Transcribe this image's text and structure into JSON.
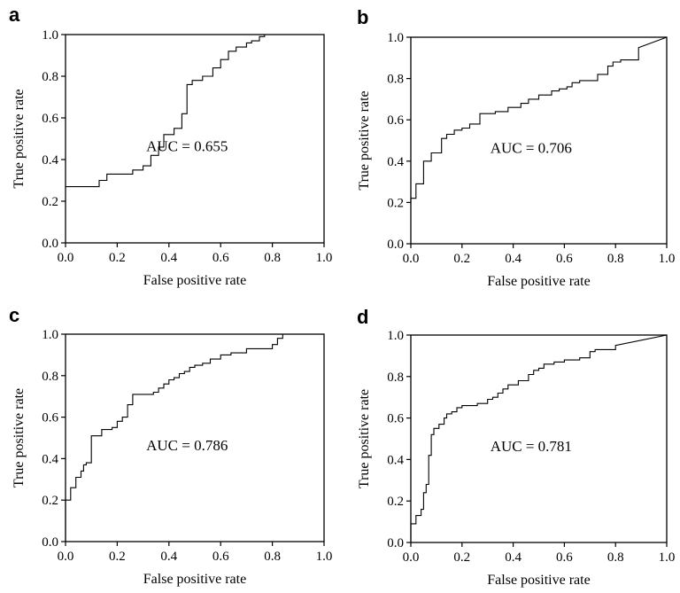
{
  "chart_data": [
    {
      "type": "line",
      "panel": "a",
      "xlabel": "False positive rate",
      "ylabel": "True positive rate",
      "xlim": [
        0,
        1
      ],
      "ylim": [
        0,
        1
      ],
      "xticks": [
        "0.0",
        "0.2",
        "0.4",
        "0.6",
        "0.8",
        "1.0"
      ],
      "yticks": [
        "0.0",
        "0.2",
        "0.4",
        "0.6",
        "0.8",
        "1.0"
      ],
      "annotation": "AUC = 0.655",
      "x": [
        0,
        0.13,
        0.13,
        0.16,
        0.16,
        0.26,
        0.26,
        0.3,
        0.3,
        0.33,
        0.33,
        0.36,
        0.36,
        0.38,
        0.38,
        0.42,
        0.42,
        0.45,
        0.45,
        0.47,
        0.47,
        0.49,
        0.49,
        0.53,
        0.53,
        0.57,
        0.57,
        0.6,
        0.6,
        0.63,
        0.63,
        0.66,
        0.66,
        0.7,
        0.7,
        0.72,
        0.72,
        0.75,
        0.75,
        0.77,
        0.77
      ],
      "y": [
        0.27,
        0.27,
        0.3,
        0.3,
        0.33,
        0.33,
        0.35,
        0.35,
        0.37,
        0.37,
        0.42,
        0.42,
        0.46,
        0.46,
        0.52,
        0.52,
        0.55,
        0.55,
        0.62,
        0.62,
        0.76,
        0.76,
        0.78,
        0.78,
        0.8,
        0.8,
        0.84,
        0.84,
        0.88,
        0.88,
        0.92,
        0.92,
        0.94,
        0.94,
        0.96,
        0.96,
        0.97,
        0.97,
        0.99,
        0.99,
        1.0
      ]
    },
    {
      "type": "line",
      "panel": "b",
      "xlabel": "False positive rate",
      "ylabel": "True positive rate",
      "xlim": [
        0,
        1
      ],
      "ylim": [
        0,
        1
      ],
      "xticks": [
        "0.0",
        "0.2",
        "0.4",
        "0.6",
        "0.8",
        "1.0"
      ],
      "yticks": [
        "0.0",
        "0.2",
        "0.4",
        "0.6",
        "0.8",
        "1.0"
      ],
      "annotation": "AUC = 0.706",
      "x": [
        0,
        0,
        0.02,
        0.02,
        0.05,
        0.05,
        0.08,
        0.08,
        0.12,
        0.12,
        0.14,
        0.14,
        0.17,
        0.17,
        0.2,
        0.2,
        0.23,
        0.23,
        0.27,
        0.27,
        0.33,
        0.33,
        0.38,
        0.38,
        0.43,
        0.43,
        0.46,
        0.46,
        0.5,
        0.5,
        0.55,
        0.55,
        0.58,
        0.58,
        0.61,
        0.61,
        0.63,
        0.63,
        0.66,
        0.66,
        0.73,
        0.73,
        0.77,
        0.77,
        0.79,
        0.79,
        0.82,
        0.82,
        0.89,
        0.89,
        1.0
      ],
      "y": [
        0.2,
        0.22,
        0.22,
        0.29,
        0.29,
        0.4,
        0.4,
        0.44,
        0.44,
        0.51,
        0.51,
        0.53,
        0.53,
        0.55,
        0.55,
        0.56,
        0.56,
        0.58,
        0.58,
        0.63,
        0.63,
        0.64,
        0.64,
        0.66,
        0.66,
        0.68,
        0.68,
        0.7,
        0.7,
        0.72,
        0.72,
        0.74,
        0.74,
        0.75,
        0.75,
        0.76,
        0.76,
        0.78,
        0.78,
        0.79,
        0.79,
        0.82,
        0.82,
        0.86,
        0.86,
        0.88,
        0.88,
        0.89,
        0.89,
        0.95,
        1.0
      ]
    },
    {
      "type": "line",
      "panel": "c",
      "xlabel": "False positive rate",
      "ylabel": "True positive rate",
      "xlim": [
        0,
        1
      ],
      "ylim": [
        0,
        1
      ],
      "xticks": [
        "0.0",
        "0.2",
        "0.4",
        "0.6",
        "0.8",
        "1.0"
      ],
      "yticks": [
        "0.0",
        "0.2",
        "0.4",
        "0.6",
        "0.8",
        "1.0"
      ],
      "annotation": "AUC = 0.786",
      "x": [
        0,
        0,
        0.02,
        0.02,
        0.04,
        0.04,
        0.06,
        0.06,
        0.07,
        0.07,
        0.08,
        0.08,
        0.1,
        0.1,
        0.14,
        0.14,
        0.18,
        0.18,
        0.2,
        0.2,
        0.22,
        0.22,
        0.24,
        0.24,
        0.26,
        0.26,
        0.34,
        0.34,
        0.36,
        0.36,
        0.38,
        0.38,
        0.4,
        0.4,
        0.42,
        0.42,
        0.44,
        0.44,
        0.46,
        0.46,
        0.48,
        0.48,
        0.5,
        0.5,
        0.53,
        0.53,
        0.56,
        0.56,
        0.6,
        0.6,
        0.64,
        0.64,
        0.7,
        0.7,
        0.8,
        0.8,
        0.82,
        0.82,
        0.84,
        0.84,
        0.85
      ],
      "y": [
        0.0,
        0.2,
        0.2,
        0.26,
        0.26,
        0.31,
        0.31,
        0.34,
        0.34,
        0.37,
        0.37,
        0.38,
        0.38,
        0.51,
        0.51,
        0.54,
        0.54,
        0.55,
        0.55,
        0.58,
        0.58,
        0.6,
        0.6,
        0.66,
        0.66,
        0.71,
        0.71,
        0.72,
        0.72,
        0.74,
        0.74,
        0.76,
        0.76,
        0.78,
        0.78,
        0.79,
        0.79,
        0.81,
        0.81,
        0.82,
        0.82,
        0.84,
        0.84,
        0.85,
        0.85,
        0.86,
        0.86,
        0.88,
        0.88,
        0.9,
        0.9,
        0.91,
        0.91,
        0.93,
        0.93,
        0.95,
        0.95,
        0.98,
        0.98,
        1.0,
        1.0
      ]
    },
    {
      "type": "line",
      "panel": "d",
      "xlabel": "False positive rate",
      "ylabel": "True positive rate",
      "xlim": [
        0,
        1
      ],
      "ylim": [
        0,
        1
      ],
      "xticks": [
        "0.0",
        "0.2",
        "0.4",
        "0.6",
        "0.8",
        "1.0"
      ],
      "yticks": [
        "0.0",
        "0.2",
        "0.4",
        "0.6",
        "0.8",
        "1.0"
      ],
      "annotation": "AUC = 0.781",
      "x": [
        0,
        0,
        0.02,
        0.02,
        0.04,
        0.04,
        0.05,
        0.05,
        0.06,
        0.06,
        0.07,
        0.07,
        0.08,
        0.08,
        0.09,
        0.09,
        0.11,
        0.11,
        0.13,
        0.13,
        0.14,
        0.14,
        0.16,
        0.16,
        0.18,
        0.18,
        0.2,
        0.2,
        0.26,
        0.26,
        0.3,
        0.3,
        0.32,
        0.32,
        0.34,
        0.34,
        0.36,
        0.36,
        0.38,
        0.38,
        0.42,
        0.42,
        0.46,
        0.46,
        0.48,
        0.48,
        0.5,
        0.5,
        0.52,
        0.52,
        0.56,
        0.56,
        0.6,
        0.6,
        0.66,
        0.66,
        0.7,
        0.7,
        0.72,
        0.72,
        0.8,
        0.8,
        1.0
      ],
      "y": [
        0.0,
        0.09,
        0.09,
        0.13,
        0.13,
        0.16,
        0.16,
        0.24,
        0.24,
        0.28,
        0.28,
        0.42,
        0.42,
        0.52,
        0.52,
        0.55,
        0.55,
        0.57,
        0.57,
        0.6,
        0.6,
        0.62,
        0.62,
        0.63,
        0.63,
        0.65,
        0.65,
        0.66,
        0.66,
        0.67,
        0.67,
        0.69,
        0.69,
        0.7,
        0.7,
        0.72,
        0.72,
        0.74,
        0.74,
        0.76,
        0.76,
        0.78,
        0.78,
        0.81,
        0.81,
        0.83,
        0.83,
        0.84,
        0.84,
        0.86,
        0.86,
        0.87,
        0.87,
        0.88,
        0.88,
        0.89,
        0.89,
        0.92,
        0.92,
        0.93,
        0.93,
        0.95,
        1.0
      ]
    }
  ]
}
